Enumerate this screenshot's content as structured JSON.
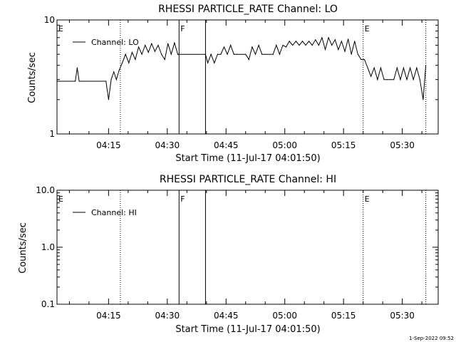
{
  "chart_data": [
    {
      "type": "line",
      "title": "RHESSI PARTICLE_RATE Channel: LO",
      "xlabel": "Start Time (11-Jul-17 04:01:50)",
      "ylabel": "Counts/sec",
      "yscale": "log",
      "ylim": [
        1,
        10
      ],
      "ytick_labels": [
        "1",
        "10"
      ],
      "xlim": [
        "04:01:50",
        "05:39:10"
      ],
      "xtick_labels": [
        "04:15",
        "04:30",
        "04:45",
        "05:00",
        "05:15",
        "05:30"
      ],
      "legend": "Channel: LO",
      "legend_position": "top-left",
      "flags": [
        {
          "label": "E",
          "time": "04:01:50",
          "style": "dotted"
        },
        {
          "label": "",
          "time": "04:18:00",
          "style": "dotted"
        },
        {
          "label": "F",
          "time": "04:33:00",
          "style": "solid"
        },
        {
          "label": "",
          "time": "04:39:45",
          "style": "solid"
        },
        {
          "label": "E",
          "time": "05:20:00",
          "style": "dotted"
        },
        {
          "label": "",
          "time": "05:36:00",
          "style": "dotted"
        }
      ],
      "series": [
        {
          "name": "Channel: LO",
          "x": [
            "04:01:50",
            "04:06:30",
            "04:07:00",
            "04:07:30",
            "04:08:00",
            "04:14:20",
            "04:15:00",
            "04:15:40",
            "04:16:20",
            "04:17:00",
            "04:17:40",
            "04:18:30",
            "04:19:20",
            "04:20:10",
            "04:21:00",
            "04:21:50",
            "04:22:40",
            "04:23:30",
            "04:24:20",
            "04:25:10",
            "04:26:00",
            "04:26:50",
            "04:27:40",
            "04:28:30",
            "04:29:20",
            "04:30:10",
            "04:31:00",
            "04:31:50",
            "04:32:40",
            "04:33:00",
            "04:39:45",
            "04:40:20",
            "04:41:10",
            "04:42:00",
            "04:42:50",
            "04:43:40",
            "04:44:30",
            "04:45:20",
            "04:46:10",
            "04:47:00",
            "04:47:50",
            "04:50:00",
            "04:50:50",
            "04:51:40",
            "04:52:30",
            "04:53:20",
            "04:54:10",
            "04:55:00",
            "04:57:00",
            "04:57:50",
            "04:58:40",
            "04:59:30",
            "05:00:20",
            "05:01:10",
            "05:02:00",
            "05:02:50",
            "05:03:40",
            "05:04:30",
            "05:05:20",
            "05:06:10",
            "05:07:00",
            "05:07:50",
            "05:08:40",
            "05:09:30",
            "05:10:20",
            "05:11:10",
            "05:12:00",
            "05:12:50",
            "05:13:40",
            "05:14:30",
            "05:15:20",
            "05:16:10",
            "05:17:00",
            "05:17:50",
            "05:18:40",
            "05:19:30",
            "05:20:20",
            "05:21:10",
            "05:22:00",
            "05:22:50",
            "05:23:40",
            "05:24:30",
            "05:25:20",
            "05:26:10",
            "05:27:00",
            "05:27:50",
            "05:28:40",
            "05:29:30",
            "05:30:20",
            "05:31:10",
            "05:32:00",
            "05:32:50",
            "05:33:40",
            "05:34:30",
            "05:35:20",
            "05:36:00"
          ],
          "values": [
            2.9,
            2.9,
            3.8,
            2.9,
            2.9,
            2.9,
            2.0,
            3.0,
            3.5,
            3.0,
            3.6,
            4.2,
            5.0,
            4.2,
            5.2,
            4.5,
            5.8,
            5.0,
            6.0,
            5.2,
            6.2,
            5.3,
            6.0,
            5.0,
            4.5,
            6.2,
            5.0,
            6.3,
            5.0,
            5.0,
            5.0,
            4.2,
            5.0,
            4.2,
            5.0,
            5.0,
            5.8,
            5.0,
            6.0,
            5.0,
            5.0,
            5.0,
            4.5,
            5.8,
            5.0,
            6.0,
            5.0,
            5.0,
            5.0,
            6.0,
            5.0,
            6.0,
            5.8,
            6.5,
            6.0,
            6.5,
            6.0,
            6.5,
            6.0,
            6.5,
            6.0,
            6.7,
            6.0,
            7.0,
            5.5,
            7.0,
            6.0,
            6.7,
            5.5,
            6.5,
            5.3,
            6.8,
            5.0,
            6.5,
            5.0,
            4.5,
            4.5,
            3.8,
            3.2,
            3.8,
            3.0,
            3.8,
            3.0,
            3.0,
            3.0,
            3.0,
            3.8,
            3.0,
            3.8,
            3.0,
            3.8,
            3.0,
            3.8,
            3.0,
            2.0,
            4.0
          ]
        }
      ]
    },
    {
      "type": "line",
      "title": "RHESSI PARTICLE_RATE Channel: HI",
      "xlabel": "Start Time (11-Jul-17 04:01:50)",
      "ylabel": "Counts/sec",
      "yscale": "log",
      "ylim": [
        0.1,
        10
      ],
      "ytick_labels": [
        "0.1",
        "1.0",
        "10.0"
      ],
      "xlim": [
        "04:01:50",
        "05:39:10"
      ],
      "xtick_labels": [
        "04:15",
        "04:30",
        "04:45",
        "05:00",
        "05:15",
        "05:30"
      ],
      "legend": "Channel: HI",
      "legend_position": "top-left",
      "flags": [
        {
          "label": "E",
          "time": "04:01:50",
          "style": "dotted"
        },
        {
          "label": "",
          "time": "04:18:00",
          "style": "dotted"
        },
        {
          "label": "F",
          "time": "04:33:00",
          "style": "solid"
        },
        {
          "label": "",
          "time": "04:39:45",
          "style": "solid"
        },
        {
          "label": "E",
          "time": "05:20:00",
          "style": "dotted"
        },
        {
          "label": "",
          "time": "05:36:00",
          "style": "dotted"
        }
      ],
      "series": [
        {
          "name": "Channel: HI",
          "x": [],
          "values": []
        }
      ]
    }
  ],
  "footer": {
    "timestamp": "1-Sep-2022 09:52"
  }
}
